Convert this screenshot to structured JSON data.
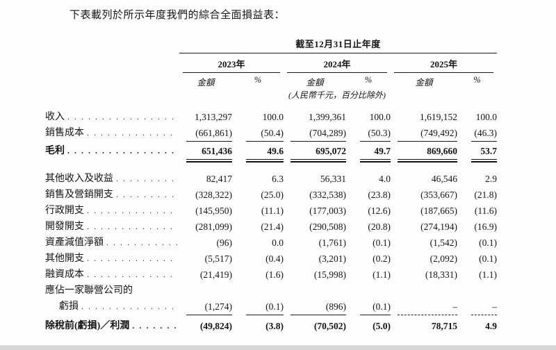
{
  "page": {
    "intro": "下表載列於所示年度我們的綜合全面損益表："
  },
  "table": {
    "period_header": "截至12月31日止年度",
    "units_note": "(人民幣千元，百分比除外)",
    "year_groups": [
      {
        "year": "2023年",
        "amount_label": "金額",
        "pct_label": "%"
      },
      {
        "year": "2024年",
        "amount_label": "金額",
        "pct_label": "%"
      },
      {
        "year": "2025年",
        "amount_label": "金額",
        "pct_label": "%"
      }
    ],
    "rows": [
      {
        "label": "收入",
        "values": [
          "1,313,297",
          "100.0",
          "1,399,361",
          "100.0",
          "1,619,152",
          "100.0"
        ]
      },
      {
        "label": "銷售成本",
        "values": [
          "(661,861)",
          "(50.4)",
          "(704,289)",
          "(50.3)",
          "(749,492)",
          "(46.3)"
        ]
      },
      {
        "label": "毛利",
        "values": [
          "651,436",
          "49.6",
          "695,072",
          "49.7",
          "869,660",
          "53.7"
        ]
      },
      {
        "label": "其他收入及收益",
        "values": [
          "82,417",
          "6.3",
          "56,331",
          "4.0",
          "46,546",
          "2.9"
        ]
      },
      {
        "label": "銷售及營銷開支",
        "values": [
          "(328,322)",
          "(25.0)",
          "(332,538)",
          "(23.8)",
          "(353,667)",
          "(21.8)"
        ]
      },
      {
        "label": "行政開支",
        "values": [
          "(145,950)",
          "(11.1)",
          "(177,003)",
          "(12.6)",
          "(187,665)",
          "(11.6)"
        ]
      },
      {
        "label": "開發開支",
        "values": [
          "(281,099)",
          "(21.4)",
          "(290,508)",
          "(20.8)",
          "(274,194)",
          "(16.9)"
        ]
      },
      {
        "label": "資產減值淨額",
        "values": [
          "(96)",
          "0.0",
          "(1,761)",
          "(0.1)",
          "(1,542)",
          "(0.1)"
        ]
      },
      {
        "label": "其他開支",
        "values": [
          "(5,517)",
          "(0.4)",
          "(3,201)",
          "(0.2)",
          "(2,092)",
          "(0.1)"
        ]
      },
      {
        "label": "融資成本",
        "values": [
          "(21,419)",
          "(1.6)",
          "(15,998)",
          "(1.1)",
          "(18,331)",
          "(1.1)"
        ]
      },
      {
        "label": "應佔一家聯營公司的",
        "values": [
          "",
          "",
          "",
          "",
          "",
          ""
        ]
      },
      {
        "label": "虧損",
        "values": [
          "(1,274)",
          "(0.1)",
          "(896)",
          "(0.1)",
          "–",
          "–"
        ]
      },
      {
        "label": "除稅前(虧損)／利潤",
        "values": [
          "(49,824)",
          "(3.8)",
          "(70,502)",
          "(5.0)",
          "78,715",
          "4.9"
        ]
      }
    ]
  }
}
